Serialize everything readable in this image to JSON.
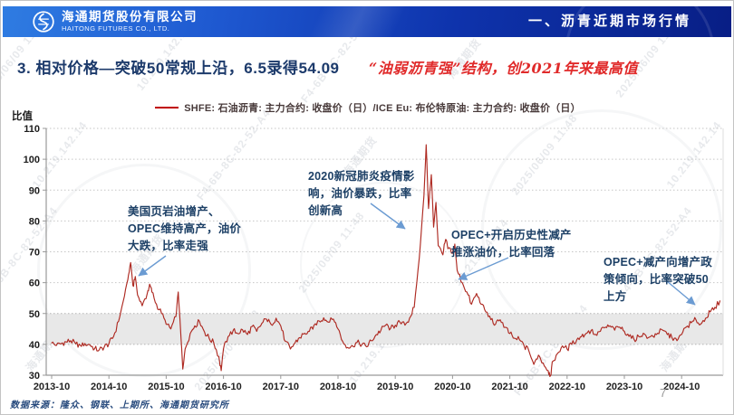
{
  "header": {
    "logo_cn": "海通期货股份有限公司",
    "logo_en": "HAITONG FUTURES CO., LTD.",
    "section_title": "一、沥青近期市场行情"
  },
  "title": {
    "main": "3. 相对价格—突破50常规上沿，6.5录得54.09",
    "highlight": "“油弱沥青强”结构，创2021年来最高值"
  },
  "legend": {
    "label": "SHFE: 石油沥青: 主力合约: 收盘价（日）/ICE Eu: 布伦特原油: 主力合约: 收盘价（日）"
  },
  "chart_data": {
    "type": "line",
    "title": "SHFE 石油沥青主力收盘价 / ICE Eu 布伦特原油主力收盘价 比值（日）",
    "ylabel": "比值",
    "xlabel": "",
    "ylim": [
      30,
      110
    ],
    "y_ticks": [
      30,
      40,
      50,
      60,
      70,
      80,
      90,
      100,
      110
    ],
    "x_tick_labels": [
      "2013-10",
      "2014-10",
      "2015-10",
      "2016-10",
      "2017-10",
      "2018-10",
      "2019-10",
      "2020-10",
      "2021-10",
      "2022-10",
      "2023-10",
      "2024-10"
    ],
    "x_range": [
      "2013-10",
      "2025-06"
    ],
    "grid": "horizontal-dotted",
    "legend_position": "top-center",
    "normal_band": {
      "from": 40,
      "to": 50,
      "fill": "#e8e8e8"
    },
    "line_color": "#ae2a22",
    "latest_point": {
      "date": "2025-06-05",
      "value": 54.09
    },
    "series": [
      {
        "name": "沥青/布伦特 收盘价比值",
        "points": [
          [
            2013.75,
            40.5
          ],
          [
            2013.83,
            39.6
          ],
          [
            2013.92,
            40.3
          ],
          [
            2014.0,
            40.8
          ],
          [
            2014.08,
            41.2
          ],
          [
            2014.17,
            40.2
          ],
          [
            2014.25,
            39.7
          ],
          [
            2014.33,
            40.3
          ],
          [
            2014.42,
            39.8
          ],
          [
            2014.5,
            38.6
          ],
          [
            2014.58,
            38.2
          ],
          [
            2014.67,
            39.2
          ],
          [
            2014.75,
            40.2
          ],
          [
            2014.83,
            42.5
          ],
          [
            2014.92,
            47.5
          ],
          [
            2015.0,
            54
          ],
          [
            2015.08,
            61
          ],
          [
            2015.13,
            66.5
          ],
          [
            2015.17,
            59
          ],
          [
            2015.21,
            62
          ],
          [
            2015.25,
            56
          ],
          [
            2015.33,
            52.5
          ],
          [
            2015.42,
            56.5
          ],
          [
            2015.46,
            59.5
          ],
          [
            2015.5,
            57
          ],
          [
            2015.58,
            53
          ],
          [
            2015.67,
            50
          ],
          [
            2015.75,
            46.5
          ],
          [
            2015.83,
            45
          ],
          [
            2015.92,
            49
          ],
          [
            2015.96,
            57
          ],
          [
            2016.0,
            45
          ],
          [
            2016.04,
            32
          ],
          [
            2016.08,
            38.5
          ],
          [
            2016.17,
            43.5
          ],
          [
            2016.25,
            46
          ],
          [
            2016.33,
            47.5
          ],
          [
            2016.42,
            44
          ],
          [
            2016.5,
            42
          ],
          [
            2016.58,
            40.5
          ],
          [
            2016.67,
            36
          ],
          [
            2016.71,
            31.5
          ],
          [
            2016.75,
            38.5
          ],
          [
            2016.83,
            42.5
          ],
          [
            2016.92,
            44.5
          ],
          [
            2017.0,
            43.5
          ],
          [
            2017.08,
            44.8
          ],
          [
            2017.17,
            43.2
          ],
          [
            2017.25,
            45.8
          ],
          [
            2017.33,
            44.2
          ],
          [
            2017.42,
            46.8
          ],
          [
            2017.5,
            48.2
          ],
          [
            2017.58,
            46.5
          ],
          [
            2017.67,
            48.5
          ],
          [
            2017.75,
            46
          ],
          [
            2017.83,
            41
          ],
          [
            2017.92,
            38.5
          ],
          [
            2018.0,
            40.5
          ],
          [
            2018.08,
            42.2
          ],
          [
            2018.17,
            43.6
          ],
          [
            2018.25,
            44.2
          ],
          [
            2018.33,
            46.2
          ],
          [
            2018.42,
            47.6
          ],
          [
            2018.5,
            48.6
          ],
          [
            2018.58,
            47.2
          ],
          [
            2018.67,
            48.2
          ],
          [
            2018.75,
            45
          ],
          [
            2018.83,
            41
          ],
          [
            2018.92,
            39
          ],
          [
            2019.0,
            39.6
          ],
          [
            2019.08,
            40.6
          ],
          [
            2019.17,
            40
          ],
          [
            2019.25,
            39.2
          ],
          [
            2019.33,
            41.2
          ],
          [
            2019.42,
            43.2
          ],
          [
            2019.5,
            44.6
          ],
          [
            2019.58,
            46.2
          ],
          [
            2019.67,
            45.2
          ],
          [
            2019.75,
            46.2
          ],
          [
            2019.83,
            47.2
          ],
          [
            2019.92,
            46.2
          ],
          [
            2020.0,
            48.5
          ],
          [
            2020.08,
            52
          ],
          [
            2020.17,
            68
          ],
          [
            2020.25,
            88
          ],
          [
            2020.29,
            104.7
          ],
          [
            2020.33,
            84
          ],
          [
            2020.38,
            95
          ],
          [
            2020.42,
            78
          ],
          [
            2020.46,
            86
          ],
          [
            2020.5,
            72
          ],
          [
            2020.58,
            69
          ],
          [
            2020.63,
            74
          ],
          [
            2020.67,
            71
          ],
          [
            2020.75,
            69.5
          ],
          [
            2020.79,
            72.5
          ],
          [
            2020.83,
            64
          ],
          [
            2020.92,
            60
          ],
          [
            2021.0,
            57
          ],
          [
            2021.08,
            53
          ],
          [
            2021.17,
            56.5
          ],
          [
            2021.25,
            53
          ],
          [
            2021.33,
            50.5
          ],
          [
            2021.42,
            48
          ],
          [
            2021.5,
            46.5
          ],
          [
            2021.58,
            48
          ],
          [
            2021.67,
            45.5
          ],
          [
            2021.75,
            43.5
          ],
          [
            2021.83,
            42
          ],
          [
            2021.92,
            41.5
          ],
          [
            2022.0,
            39.5
          ],
          [
            2022.08,
            38
          ],
          [
            2022.17,
            33.5
          ],
          [
            2022.25,
            36.5
          ],
          [
            2022.33,
            34
          ],
          [
            2022.42,
            31.5
          ],
          [
            2022.46,
            29.8
          ],
          [
            2022.5,
            34.5
          ],
          [
            2022.58,
            37
          ],
          [
            2022.67,
            39.5
          ],
          [
            2022.75,
            38.5
          ],
          [
            2022.83,
            40
          ],
          [
            2022.92,
            41.5
          ],
          [
            2023.0,
            42.5
          ],
          [
            2023.08,
            43.5
          ],
          [
            2023.17,
            44.5
          ],
          [
            2023.25,
            43.2
          ],
          [
            2023.33,
            44.2
          ],
          [
            2023.42,
            45.6
          ],
          [
            2023.5,
            46
          ],
          [
            2023.58,
            44.6
          ],
          [
            2023.67,
            45.6
          ],
          [
            2023.75,
            44.2
          ],
          [
            2023.83,
            42.6
          ],
          [
            2023.92,
            41.6
          ],
          [
            2024.0,
            42.6
          ],
          [
            2024.08,
            43.6
          ],
          [
            2024.17,
            42.2
          ],
          [
            2024.25,
            42.6
          ],
          [
            2024.33,
            43.6
          ],
          [
            2024.42,
            44.6
          ],
          [
            2024.5,
            43.2
          ],
          [
            2024.58,
            42.2
          ],
          [
            2024.67,
            41.2
          ],
          [
            2024.75,
            43.2
          ],
          [
            2024.83,
            45.6
          ],
          [
            2024.92,
            47
          ],
          [
            2025.0,
            48
          ],
          [
            2025.08,
            46.5
          ],
          [
            2025.17,
            48.5
          ],
          [
            2025.25,
            50.5
          ],
          [
            2025.33,
            52
          ],
          [
            2025.42,
            54.09
          ]
        ]
      }
    ]
  },
  "annotations": [
    {
      "text": "美国页岩油增产、\nOPEC维持高产，油价\n大跌，比率走强"
    },
    {
      "text": "2020新冠肺炎疫情影\n响，油价暴跌，比率\n创新高"
    },
    {
      "text": "OPEC+开启历史性减产\n推涨油价，比率回落"
    },
    {
      "text": "OPEC+减产向增产政\n策倾向，比率突破50\n上方"
    }
  ],
  "footer": {
    "source": "数据来源：隆众、钢联、上期所、海通期货研究所",
    "page_number": "7"
  },
  "watermark": {
    "lines": [
      "2025/06/09 11:48",
      "10.219.142.14",
      "F4-6B-8C-82-52-A4",
      "海通期货"
    ]
  },
  "colors": {
    "header_gradient_start": "#2f7ce2",
    "header_gradient_end": "#081e85",
    "title_navy": "#1c3a6b",
    "highlight_red": "#e02a2a",
    "line_red": "#ae2a22",
    "band_gray": "#e8e8e8",
    "annotation_navy": "#1d4066",
    "arrow_blue": "#6b9bd2"
  }
}
